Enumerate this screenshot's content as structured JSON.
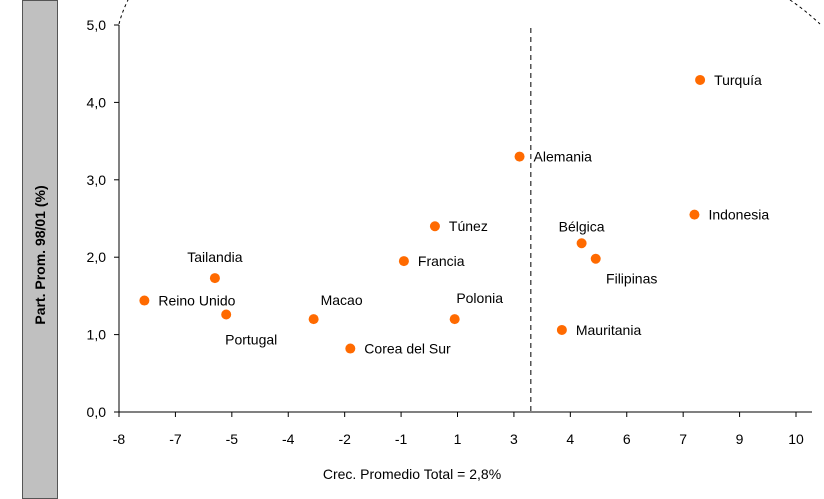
{
  "chart_data": {
    "type": "scatter",
    "ylabel": "Part. Prom. 98/01 (%)",
    "footer_label": "Crec. Promedio Total = 2,8%",
    "y_ticks": [
      "0,0",
      "1,0",
      "2,0",
      "3,0",
      "4,0",
      "5,0"
    ],
    "ylim": [
      0,
      5
    ],
    "x_ticks": [
      "-8",
      "-7",
      "-5",
      "-4",
      "-2",
      "-1",
      "1",
      "3",
      "4",
      "6",
      "7",
      "9",
      "10"
    ],
    "reference_line": {
      "x_index": 7.3,
      "style": "dashed"
    },
    "marker_color": "#ff6a00",
    "points": [
      {
        "label": "Reino Unido",
        "x_index": 0.45,
        "y": 1.44
      },
      {
        "label": "Tailandia",
        "x_index": 1.7,
        "y": 1.73
      },
      {
        "label": "Portugal",
        "x_index": 1.9,
        "y": 1.26
      },
      {
        "label": "Macao",
        "x_index": 3.45,
        "y": 1.2
      },
      {
        "label": "Corea del Sur",
        "x_index": 4.1,
        "y": 0.82
      },
      {
        "label": "Francia",
        "x_index": 5.05,
        "y": 1.95
      },
      {
        "label": "Túnez",
        "x_index": 5.6,
        "y": 2.4
      },
      {
        "label": "Polonia",
        "x_index": 5.95,
        "y": 1.2
      },
      {
        "label": "Alemania",
        "x_index": 7.1,
        "y": 3.3
      },
      {
        "label": "Mauritania",
        "x_index": 7.85,
        "y": 1.06
      },
      {
        "label": "Bélgica",
        "x_index": 8.2,
        "y": 2.18
      },
      {
        "label": "Filipinas",
        "x_index": 8.45,
        "y": 1.98
      },
      {
        "label": "Indonesia",
        "x_index": 10.2,
        "y": 2.55
      },
      {
        "label": "Turquía",
        "x_index": 10.3,
        "y": 4.29
      }
    ]
  }
}
